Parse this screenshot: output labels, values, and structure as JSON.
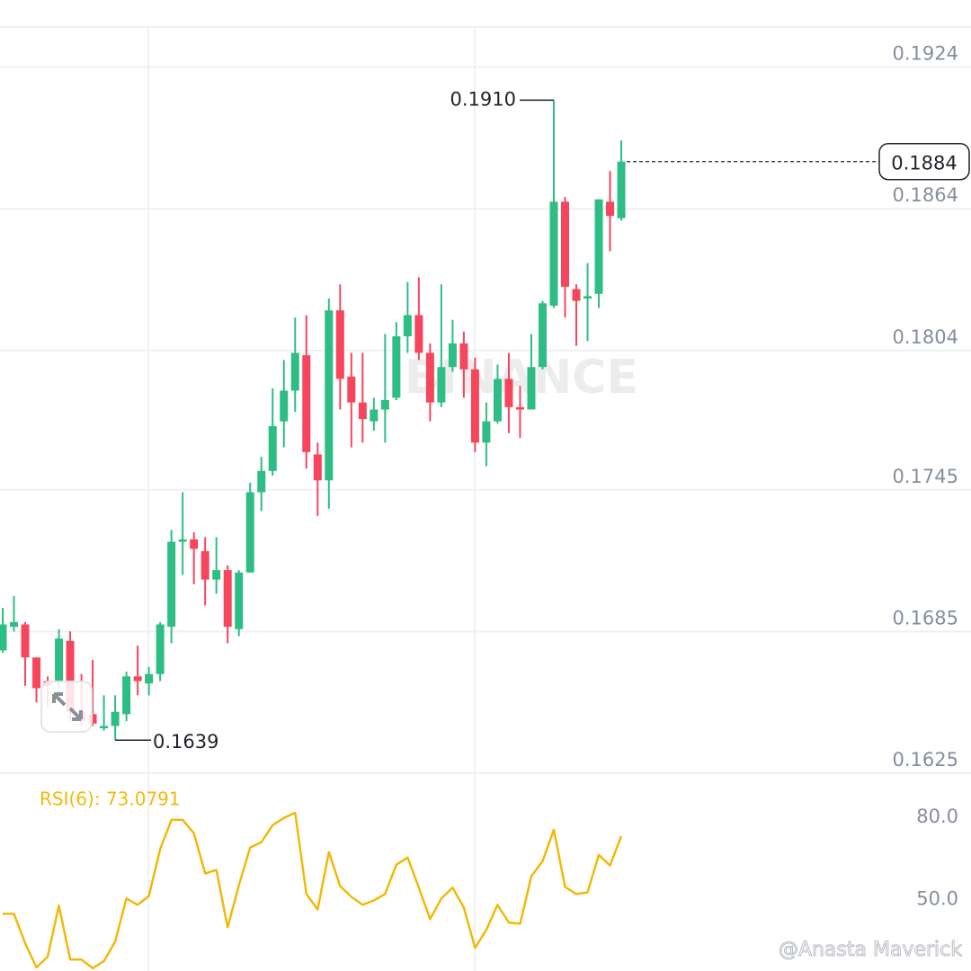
{
  "chart_data": [
    {
      "type": "candlestick",
      "open": [
        0.1677,
        0.1687,
        0.1688,
        0.1674,
        0.1664,
        0.1664,
        0.1681,
        0.1651,
        0.165,
        0.1644,
        0.1645,
        0.165,
        0.1666,
        0.1663,
        0.1667,
        0.1687,
        0.1723,
        0.1724,
        0.1719,
        0.1707,
        0.1711,
        0.1686,
        0.171,
        0.1744,
        0.1753,
        0.1774,
        0.1787,
        0.1802,
        0.176,
        0.1749,
        0.1821,
        0.1793,
        0.1782,
        0.1774,
        0.1779,
        0.1784,
        0.181,
        0.1819,
        0.1803,
        0.1782,
        0.1797,
        0.1807,
        0.1796,
        0.1765,
        0.1774,
        0.1792,
        0.178,
        0.1779,
        0.1797,
        0.1823,
        0.1867,
        0.183,
        0.1826,
        0.1828,
        0.1867,
        0.186
      ],
      "high": [
        0.1695,
        0.17,
        0.1689,
        0.1674,
        0.1666,
        0.1686,
        0.1685,
        0.1667,
        0.1673,
        0.1658,
        0.1658,
        0.1668,
        0.1679,
        0.167,
        0.1689,
        0.1728,
        0.1744,
        0.1727,
        0.1725,
        0.1725,
        0.1713,
        0.1711,
        0.1748,
        0.1759,
        0.1788,
        0.18,
        0.1818,
        0.1819,
        0.1765,
        0.1826,
        0.1832,
        0.1803,
        0.1803,
        0.1784,
        0.1811,
        0.1816,
        0.1833,
        0.1835,
        0.1807,
        0.1832,
        0.1817,
        0.1812,
        0.1801,
        0.1782,
        0.1798,
        0.1803,
        0.1789,
        0.1811,
        0.1825,
        0.191,
        0.1869,
        0.1832,
        0.1841,
        0.1868,
        0.188,
        0.1893
      ],
      "low": [
        0.1676,
        0.1685,
        0.1662,
        0.1655,
        0.1653,
        0.1658,
        0.1647,
        0.1645,
        0.1645,
        0.1643,
        0.1639,
        0.1647,
        0.1658,
        0.1658,
        0.1664,
        0.168,
        0.1709,
        0.1705,
        0.1696,
        0.1701,
        0.168,
        0.1683,
        0.171,
        0.1736,
        0.1751,
        0.1763,
        0.1778,
        0.1754,
        0.1734,
        0.1737,
        0.1779,
        0.1763,
        0.1765,
        0.177,
        0.1765,
        0.1783,
        0.1803,
        0.18,
        0.1774,
        0.178,
        0.1795,
        0.1784,
        0.1761,
        0.1755,
        0.1773,
        0.1769,
        0.1767,
        0.1779,
        0.1796,
        0.1822,
        0.1818,
        0.1806,
        0.1808,
        0.1822,
        0.1846,
        0.1859
      ],
      "close": [
        0.1688,
        0.1689,
        0.1674,
        0.1661,
        0.1662,
        0.1682,
        0.1651,
        0.1647,
        0.1646,
        0.1645,
        0.1651,
        0.1666,
        0.1664,
        0.1667,
        0.1688,
        0.1723,
        0.1724,
        0.172,
        0.1707,
        0.1711,
        0.1687,
        0.171,
        0.1744,
        0.1753,
        0.1772,
        0.1787,
        0.1803,
        0.1761,
        0.1749,
        0.1821,
        0.1792,
        0.1782,
        0.1775,
        0.1779,
        0.1783,
        0.181,
        0.1819,
        0.1803,
        0.1782,
        0.1797,
        0.1807,
        0.1796,
        0.1765,
        0.1774,
        0.1792,
        0.178,
        0.1779,
        0.1797,
        0.1824,
        0.1867,
        0.1831,
        0.1825,
        0.1827,
        0.1868,
        0.1861,
        0.1884
      ],
      "up_color": "#2ebd85",
      "down_color": "#f6465d",
      "ylim": [
        0.1625,
        0.1941
      ],
      "yticks": [
        0.1625,
        0.1685,
        0.1745,
        0.1804,
        0.1864,
        0.1924
      ],
      "grid": true,
      "annotations": {
        "high": "0.1910",
        "low": "0.1639",
        "last": "0.1884"
      },
      "watermark": "BINANCE"
    },
    {
      "type": "line",
      "title": "RSI(6): 73.0791",
      "color": "#f0b90b",
      "values": [
        44.8,
        44.8,
        34.1,
        25.3,
        29.2,
        47.8,
        28.2,
        28.2,
        25.0,
        27.6,
        34.7,
        50.4,
        48.1,
        51.3,
        68.3,
        79.0,
        79.0,
        74.1,
        59.5,
        60.8,
        39.9,
        55.2,
        68.9,
        70.9,
        77.1,
        79.7,
        81.6,
        52.0,
        46.4,
        67.3,
        54.9,
        51.0,
        48.1,
        49.7,
        52.0,
        62.7,
        65.3,
        54.3,
        42.9,
        50.4,
        54.3,
        47.1,
        32.4,
        39.0,
        48.1,
        41.6,
        41.2,
        58.5,
        64.0,
        75.4,
        54.6,
        52.0,
        52.6,
        66.3,
        62.4,
        73.0791
      ],
      "ylim": [
        24,
        96
      ],
      "yticks": [
        {
          "value": 50,
          "label": "50.0"
        },
        {
          "value": 80,
          "label": "80.0"
        }
      ]
    }
  ],
  "credit": "@Anasta Maverick"
}
